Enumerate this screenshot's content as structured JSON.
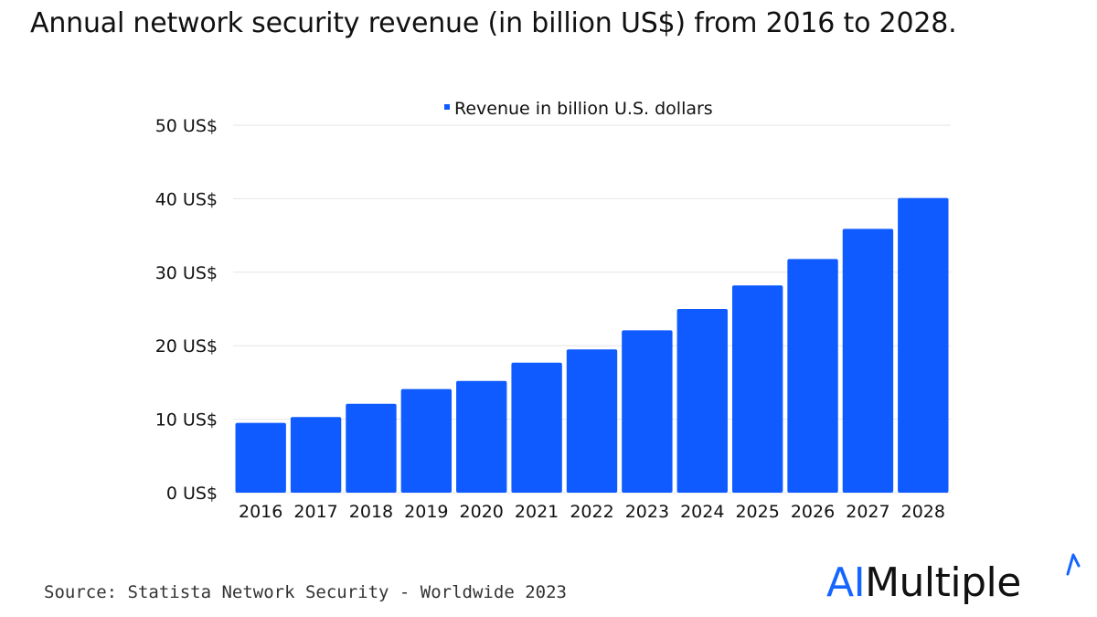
{
  "title": "Annual network security revenue (in billion US$) from 2016 to 2028.",
  "source": "Source: Statista Network Security - Worldwide 2023",
  "logo": {
    "ai": "AI",
    "multiple": "Multiple"
  },
  "colors": {
    "bar": "#0f5bff",
    "grid": "#e6e6e6",
    "accent": "#1565ff"
  },
  "chart_data": {
    "type": "bar",
    "legend": "Revenue in billion U.S. dollars",
    "legend_position": "top-center",
    "grid": true,
    "ylim": [
      0,
      50
    ],
    "y_ticks": [
      0,
      10,
      20,
      30,
      40,
      50
    ],
    "y_tick_labels": [
      "0 US$",
      "10 US$",
      "20 US$",
      "30 US$",
      "40 US$",
      "50 US$"
    ],
    "categories": [
      "2016",
      "2017",
      "2018",
      "2019",
      "2020",
      "2021",
      "2022",
      "2023",
      "2024",
      "2025",
      "2026",
      "2027",
      "2028"
    ],
    "series": [
      {
        "name": "Revenue in billion U.S. dollars",
        "values": [
          9.5,
          10.3,
          12.1,
          14.1,
          15.2,
          17.7,
          19.5,
          22.1,
          25.0,
          28.2,
          31.8,
          35.9,
          40.1
        ]
      }
    ]
  }
}
